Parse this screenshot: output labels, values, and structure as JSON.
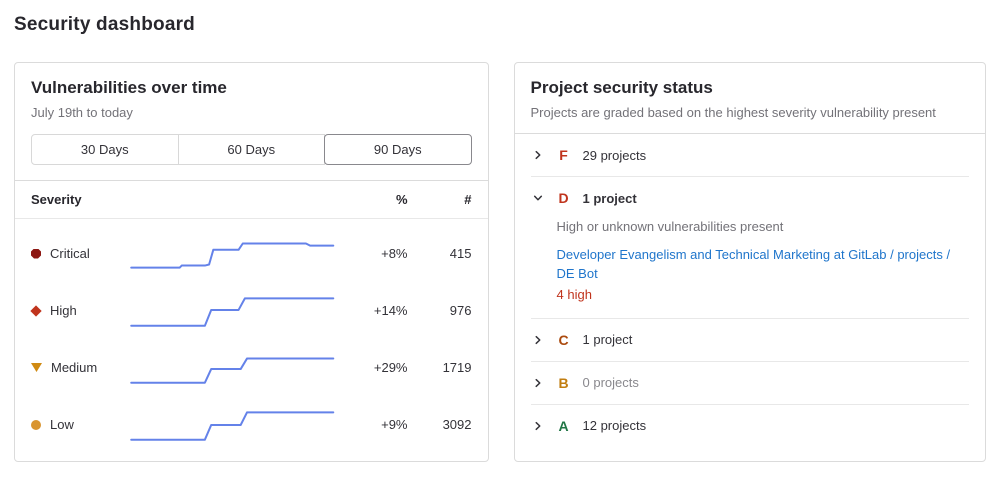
{
  "page": {
    "title": "Security dashboard"
  },
  "colors": {
    "sparkline": "#6482e9",
    "link": "#1f75cb",
    "danger": "#c0341d"
  },
  "vuln_panel": {
    "title": "Vulnerabilities over time",
    "subtitle": "July 19th to today",
    "range_buttons": [
      {
        "label": "30 Days",
        "selected": false
      },
      {
        "label": "60 Days",
        "selected": false
      },
      {
        "label": "90 Days",
        "selected": true
      }
    ],
    "table": {
      "severity_header": "Severity",
      "percent_header": "%",
      "count_header": "#",
      "rows": [
        {
          "severity": "Critical",
          "color": "#8d1712",
          "percent": "+8%",
          "count": "415",
          "points": [
            [
              2,
              33
            ],
            [
              25,
              33
            ],
            [
              26,
              31
            ],
            [
              37,
              31
            ],
            [
              39,
              30
            ],
            [
              41,
              16
            ],
            [
              53,
              16
            ],
            [
              55,
              10
            ],
            [
              85,
              10
            ],
            [
              87,
              12
            ],
            [
              98,
              12
            ]
          ]
        },
        {
          "severity": "High",
          "color": "#c0341d",
          "percent": "+14%",
          "count": "976",
          "points": [
            [
              2,
              34
            ],
            [
              37,
              34
            ],
            [
              40,
              19
            ],
            [
              53,
              19
            ],
            [
              56,
              8
            ],
            [
              98,
              8
            ]
          ]
        },
        {
          "severity": "Medium",
          "color": "#d08a12",
          "percent": "+29%",
          "count": "1719",
          "points": [
            [
              2,
              34
            ],
            [
              37,
              34
            ],
            [
              40,
              21
            ],
            [
              54,
              21
            ],
            [
              57,
              11
            ],
            [
              98,
              11
            ]
          ]
        },
        {
          "severity": "Low",
          "color": "#d99530",
          "percent": "+9%",
          "count": "3092",
          "points": [
            [
              2,
              34
            ],
            [
              37,
              34
            ],
            [
              40,
              20
            ],
            [
              54,
              20
            ],
            [
              57,
              8
            ],
            [
              98,
              8
            ]
          ]
        }
      ]
    }
  },
  "status_panel": {
    "title": "Project security status",
    "subtitle": "Projects are graded based on the highest severity vulnerability present",
    "grades": [
      {
        "letter": "F",
        "color": "#c0341d",
        "count_label": "29 projects"
      },
      {
        "letter": "D",
        "color": "#c0341d",
        "count_label": "1 project",
        "description": "High or unknown vulnerabilities present",
        "project_name": "Developer Evangelism and Technical Marketing at GitLab / projects / DE Bot",
        "project_finding": "4 high"
      },
      {
        "letter": "C",
        "color": "#ab4a0e",
        "count_label": "1 project"
      },
      {
        "letter": "B",
        "color": "#c17d10",
        "count_label": "0 projects"
      },
      {
        "letter": "A",
        "color": "#217645",
        "count_label": "12 projects"
      }
    ]
  }
}
